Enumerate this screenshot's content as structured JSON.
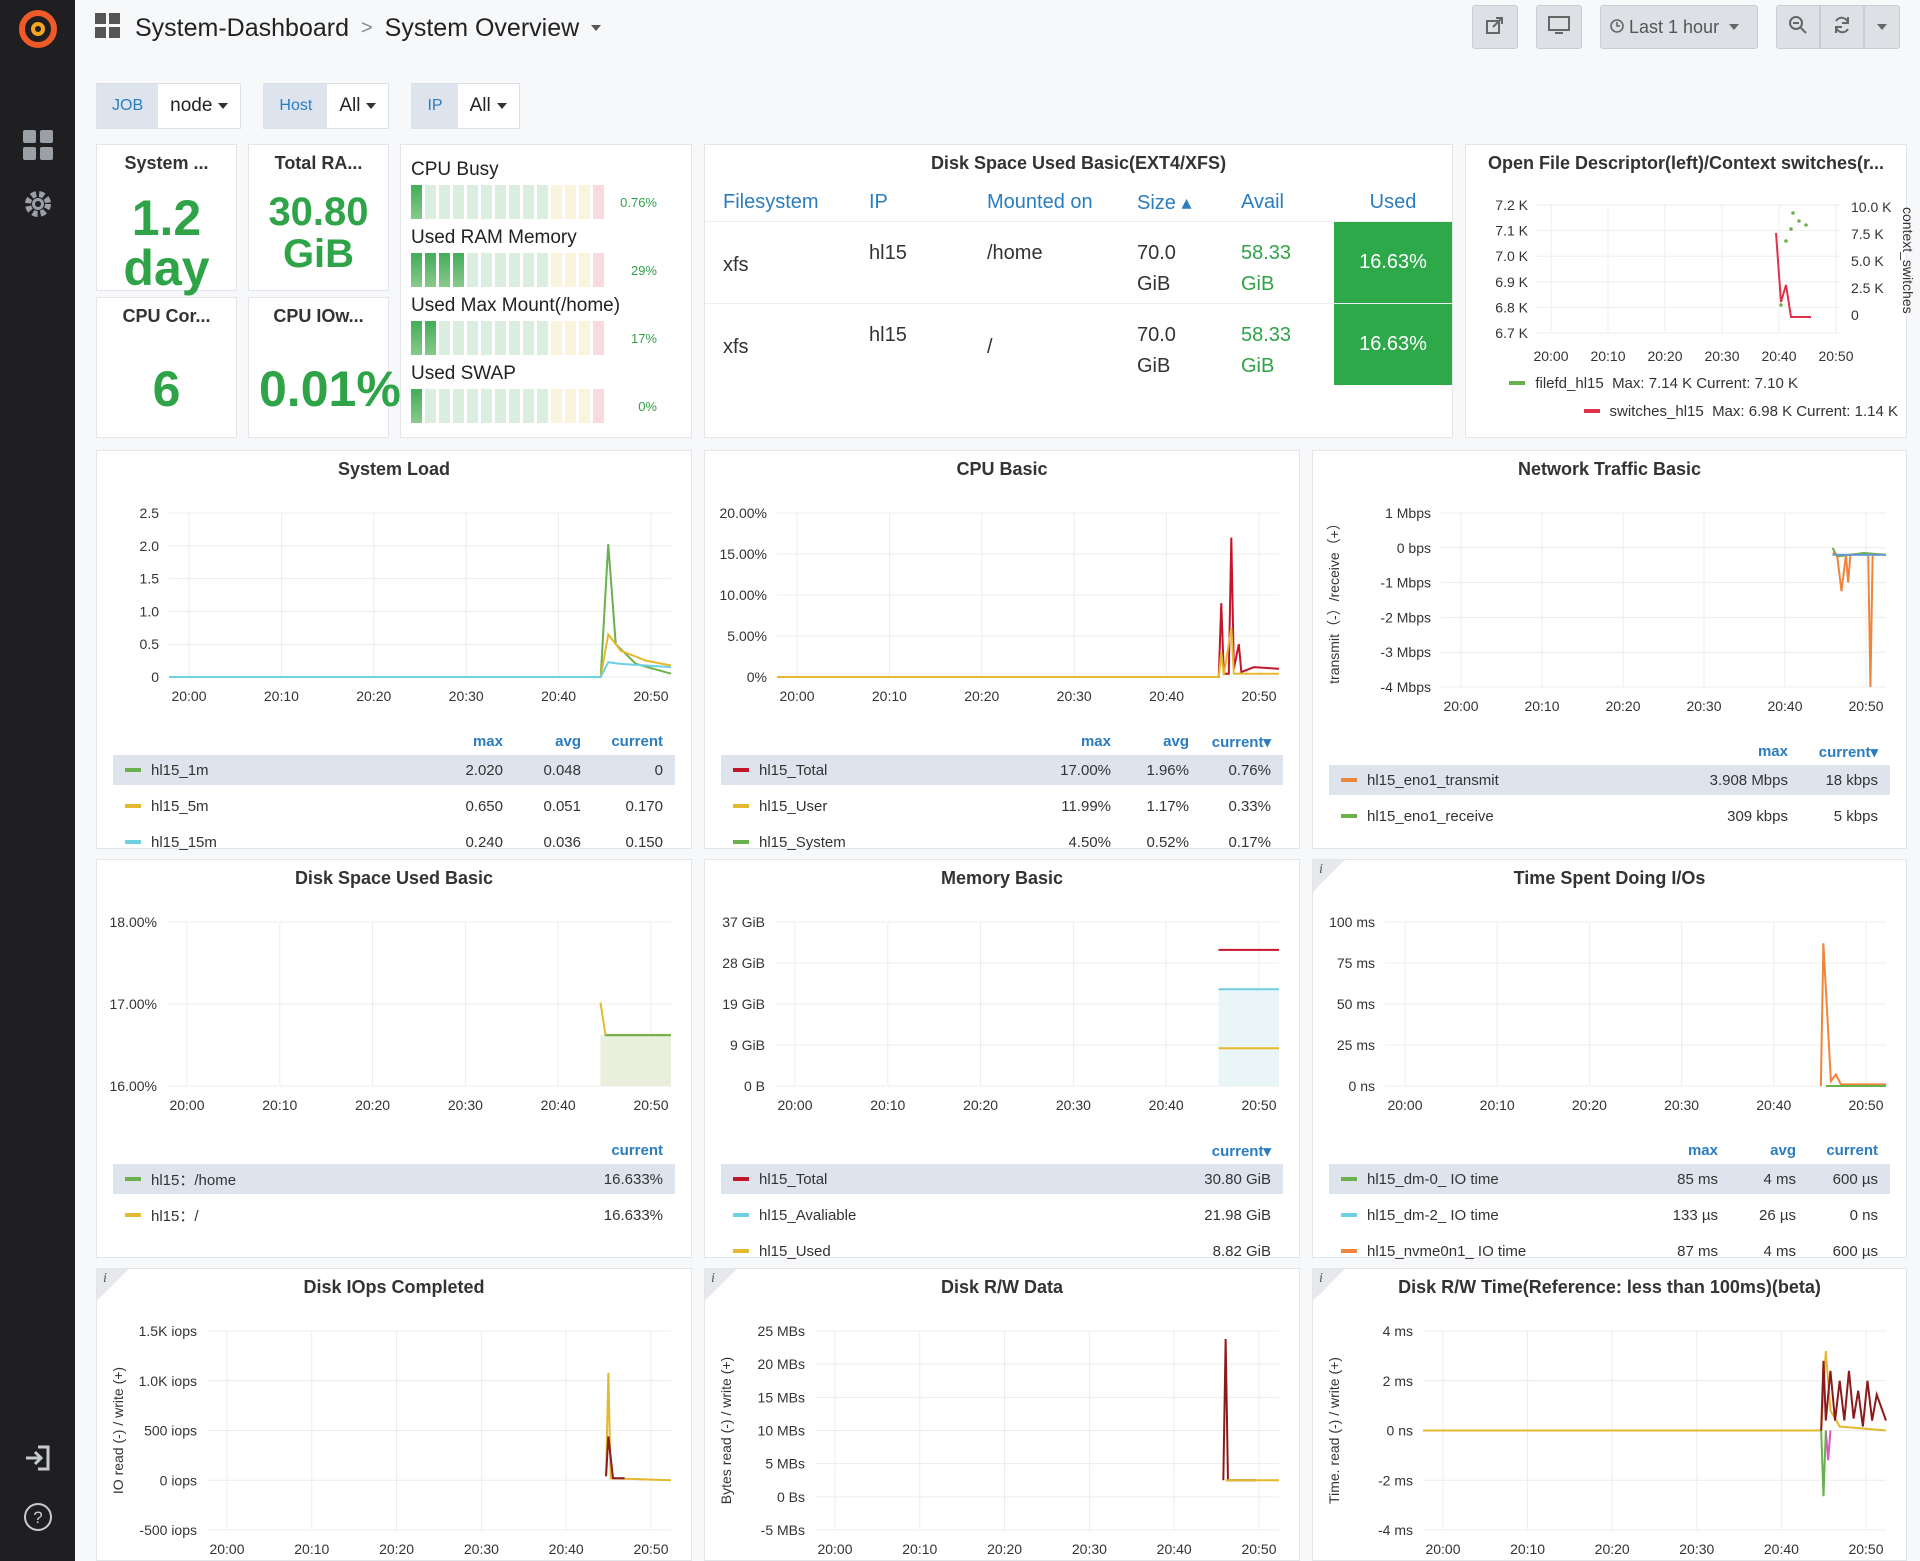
{
  "breadcrumb": {
    "folder": "System-Dashboard",
    "title": "System Overview"
  },
  "toolbar": {
    "time_range": "Last 1 hour"
  },
  "icons": [
    "grafana-logo-icon",
    "dashboards-icon",
    "gear-icon",
    "sign-in-icon",
    "help-icon",
    "share-icon",
    "tv-icon",
    "clock-icon",
    "zoom-out-icon",
    "refresh-icon"
  ],
  "vars": [
    {
      "label": "JOB",
      "value": "node"
    },
    {
      "label": "Host",
      "value": "All"
    },
    {
      "label": "IP",
      "value": "All"
    }
  ],
  "stats": {
    "uptime": {
      "title": "System ...",
      "value": "1.2 day"
    },
    "ram": {
      "title": "Total RA...",
      "value": "30.80 GiB"
    },
    "cores": {
      "title": "CPU Cor...",
      "value": "6"
    },
    "iowait": {
      "title": "CPU IOw...",
      "value": "0.01%"
    }
  },
  "gauges": [
    {
      "label": "CPU Busy",
      "pct": "0.76%",
      "value": 0.0076
    },
    {
      "label": "Used RAM Memory",
      "pct": "29%",
      "value": 0.29
    },
    {
      "label": "Used Max Mount(/home)",
      "pct": "17%",
      "value": 0.17
    },
    {
      "label": "Used SWAP",
      "pct": "0%",
      "value": 0
    }
  ],
  "disk_table": {
    "title": "Disk Space Used Basic(EXT4/XFS)",
    "headers": [
      "Filesystem",
      "IP",
      "Mounted on",
      "Size ▴",
      "Avail",
      "Used"
    ],
    "rows": [
      {
        "fs": "xfs",
        "ip": "hl15",
        "mount": "/home",
        "size1": "70.0",
        "size2": "GiB",
        "avail1": "58.33",
        "avail2": "GiB",
        "used": "16.63%"
      },
      {
        "fs": "xfs",
        "ip": "hl15",
        "mount": "/",
        "size1": "70.0",
        "size2": "GiB",
        "avail1": "58.33",
        "avail2": "GiB",
        "used": "16.63%"
      }
    ]
  },
  "ofd": {
    "title": "Open File Descriptor(left)/Context switches(r...",
    "left_ticks": [
      "7.2 K",
      "7.1 K",
      "7.0 K",
      "6.9 K",
      "6.8 K",
      "6.7 K"
    ],
    "right_ticks": [
      "10.0 K",
      "7.5 K",
      "5.0 K",
      "2.5 K",
      "0"
    ],
    "right_axis_label": "context_switches",
    "x_ticks": [
      "20:00",
      "20:10",
      "20:20",
      "20:30",
      "20:40",
      "20:50"
    ],
    "legend": [
      {
        "name": "filefd_hl15",
        "stats": "Max: 7.14 K  Current: 7.10 K",
        "color": "#6ab04c"
      },
      {
        "name": "switches_hl15",
        "stats": "Max: 6.98 K  Current: 1.14 K",
        "color": "#e0314b"
      }
    ]
  },
  "panels": {
    "system_load": {
      "title": "System Load",
      "y_ticks": [
        "2.5",
        "2.0",
        "1.5",
        "1.0",
        "0.5",
        "0"
      ],
      "x_ticks": [
        "20:00",
        "20:10",
        "20:20",
        "20:30",
        "20:40",
        "20:50"
      ],
      "cols": [
        "max",
        "avg",
        "current"
      ],
      "rows": [
        {
          "name": "hl15_1m",
          "color": "#6ab04c",
          "v": [
            "2.020",
            "0.048",
            "0"
          ]
        },
        {
          "name": "hl15_5m",
          "color": "#e5b92f",
          "v": [
            "0.650",
            "0.051",
            "0.170"
          ]
        },
        {
          "name": "hl15_15m",
          "color": "#6ed0e0",
          "v": [
            "0.240",
            "0.036",
            "0.150"
          ]
        }
      ]
    },
    "cpu_basic": {
      "title": "CPU Basic",
      "y_ticks": [
        "20.00%",
        "15.00%",
        "10.00%",
        "5.00%",
        "0%"
      ],
      "x_ticks": [
        "20:00",
        "20:10",
        "20:20",
        "20:30",
        "20:40",
        "20:50"
      ],
      "cols": [
        "max",
        "avg",
        "current▾"
      ],
      "rows": [
        {
          "name": "hl15_Total",
          "color": "#c4162a",
          "v": [
            "17.00%",
            "1.96%",
            "0.76%"
          ]
        },
        {
          "name": "hl15_User",
          "color": "#e5b92f",
          "v": [
            "11.99%",
            "1.17%",
            "0.33%"
          ]
        },
        {
          "name": "hl15_System",
          "color": "#6ab04c",
          "v": [
            "4.50%",
            "0.52%",
            "0.17%"
          ]
        }
      ]
    },
    "network": {
      "title": "Network Traffic Basic",
      "y_ticks": [
        "1 Mbps",
        "0 bps",
        "-1 Mbps",
        "-2 Mbps",
        "-3 Mbps",
        "-4 Mbps"
      ],
      "y_label": "transmit（-）/receive（+）",
      "x_ticks": [
        "20:00",
        "20:10",
        "20:20",
        "20:30",
        "20:40",
        "20:50"
      ],
      "cols": [
        "max",
        "current▾"
      ],
      "rows": [
        {
          "name": "hl15_eno1_transmit",
          "color": "#ef843c",
          "v": [
            "3.908 Mbps",
            "18 kbps"
          ]
        },
        {
          "name": "hl15_eno1_receive",
          "color": "#6ab04c",
          "v": [
            "309 kbps",
            "5 kbps"
          ]
        }
      ]
    },
    "disk_used": {
      "title": "Disk Space Used Basic",
      "y_ticks": [
        "18.00%",
        "17.00%",
        "16.00%"
      ],
      "x_ticks": [
        "20:00",
        "20:10",
        "20:20",
        "20:30",
        "20:40",
        "20:50"
      ],
      "cols": [
        "current"
      ],
      "rows": [
        {
          "name": "hl15：/home",
          "color": "#6ab04c",
          "v": [
            "16.633%"
          ]
        },
        {
          "name": "hl15：/",
          "color": "#e5b92f",
          "v": [
            "16.633%"
          ]
        }
      ]
    },
    "memory": {
      "title": "Memory Basic",
      "y_ticks": [
        "37 GiB",
        "28 GiB",
        "19 GiB",
        "9 GiB",
        "0 B"
      ],
      "x_ticks": [
        "20:00",
        "20:10",
        "20:20",
        "20:30",
        "20:40",
        "20:50"
      ],
      "cols": [
        "current▾"
      ],
      "rows": [
        {
          "name": "hl15_Total",
          "color": "#c4162a",
          "v": [
            "30.80 GiB"
          ]
        },
        {
          "name": "hl15_Avaliable",
          "color": "#6ed0e0",
          "v": [
            "21.98 GiB"
          ]
        },
        {
          "name": "hl15_Used",
          "color": "#e5b92f",
          "v": [
            "8.82 GiB"
          ]
        }
      ]
    },
    "io_time": {
      "title": "Time Spent Doing I/Os",
      "y_ticks": [
        "100 ms",
        "75 ms",
        "50 ms",
        "25 ms",
        "0 ns"
      ],
      "x_ticks": [
        "20:00",
        "20:10",
        "20:20",
        "20:30",
        "20:40",
        "20:50"
      ],
      "cols": [
        "max",
        "avg",
        "current"
      ],
      "rows": [
        {
          "name": "hl15_dm-0_ IO time",
          "color": "#6ab04c",
          "v": [
            "85 ms",
            "4 ms",
            "600 µs"
          ]
        },
        {
          "name": "hl15_dm-2_ IO time",
          "color": "#6ed0e0",
          "v": [
            "133 µs",
            "26 µs",
            "0 ns"
          ]
        },
        {
          "name": "hl15_nvme0n1_ IO time",
          "color": "#ef843c",
          "v": [
            "87 ms",
            "4 ms",
            "600 µs"
          ]
        }
      ]
    },
    "disk_iops": {
      "title": "Disk IOps Completed",
      "y_ticks": [
        "1.5K iops",
        "1.0K iops",
        "500 iops",
        "0 iops",
        "-500 iops"
      ],
      "y_label": "IO read (-) / write (+)",
      "x_ticks": [
        "20:00",
        "20:10",
        "20:20",
        "20:30",
        "20:40",
        "20:50"
      ]
    },
    "disk_rw": {
      "title": "Disk R/W Data",
      "y_ticks": [
        "25 MBs",
        "20 MBs",
        "15 MBs",
        "10 MBs",
        "5 MBs",
        "0 Bs",
        "-5 MBs"
      ],
      "y_label": "Bytes read (-) / write (+)",
      "x_ticks": [
        "20:00",
        "20:10",
        "20:20",
        "20:30",
        "20:40",
        "20:50"
      ]
    },
    "disk_rw_time": {
      "title": "Disk R/W Time(Reference: less than 100ms)(beta)",
      "y_ticks": [
        "4 ms",
        "2 ms",
        "0 ns",
        "-2 ms",
        "-4 ms"
      ],
      "y_label": "Time. read (-) / write (+)",
      "x_ticks": [
        "20:00",
        "20:10",
        "20:20",
        "20:30",
        "20:40",
        "20:50"
      ]
    }
  }
}
